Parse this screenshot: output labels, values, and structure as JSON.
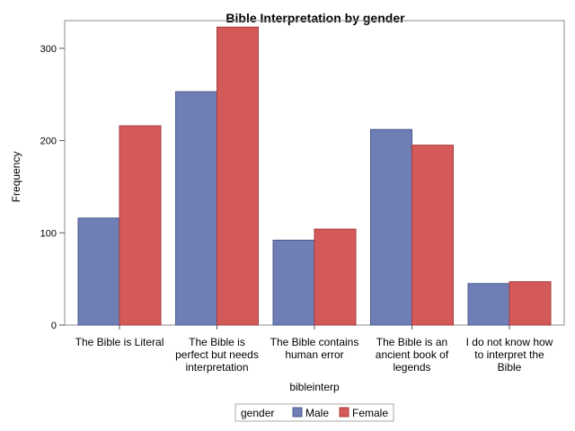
{
  "chart_data": {
    "type": "bar",
    "title": "Bible Interpretation by gender",
    "xlabel": "bibleinterp",
    "ylabel": "Frequency",
    "ylim": [
      0,
      330
    ],
    "yticks": [
      0,
      100,
      200,
      300
    ],
    "categories": [
      "The Bible is Literal",
      "The Bible is perfect but needs interpretation",
      "The Bible contains human error",
      "The Bible is an ancient book of legends",
      "I do not know how to interpret the Bible"
    ],
    "category_lines": [
      [
        "The Bible is Literal"
      ],
      [
        "The Bible is",
        "perfect but needs",
        "interpretation"
      ],
      [
        "The Bible contains",
        "human error"
      ],
      [
        "The Bible is an",
        "ancient book of",
        "legends"
      ],
      [
        "I do not know how",
        "to interpret the",
        "Bible"
      ]
    ],
    "series": [
      {
        "name": "Male",
        "color": "#6f7fb5",
        "values": [
          116,
          253,
          92,
          212,
          45
        ]
      },
      {
        "name": "Female",
        "color": "#d45a5a",
        "values": [
          216,
          323,
          104,
          195,
          47
        ]
      }
    ],
    "legend": {
      "title": "gender",
      "position": "bottom"
    },
    "grid": false
  }
}
